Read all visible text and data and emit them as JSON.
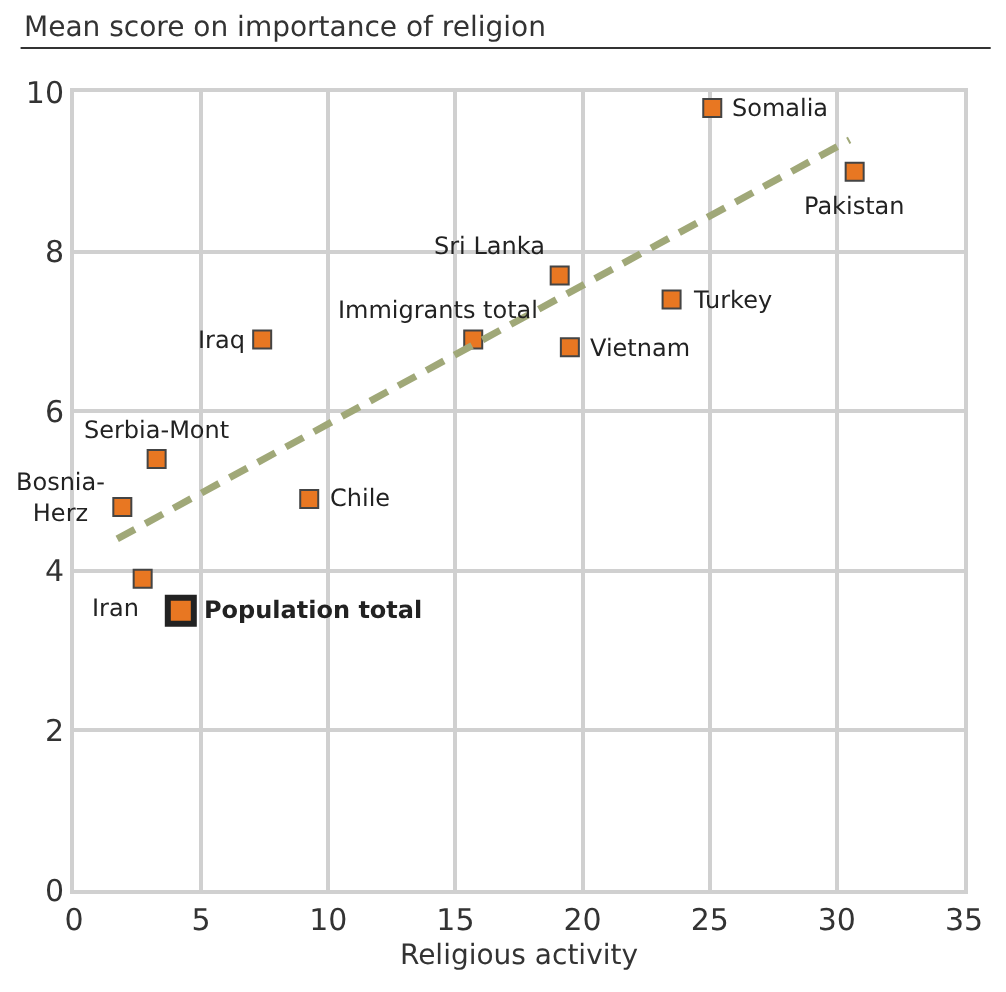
{
  "chart_data": {
    "type": "scatter",
    "ylabel": "Mean score on importance of religion",
    "xlabel": "Religious activity",
    "xlim": [
      0,
      35
    ],
    "xticks": [
      0,
      5,
      10,
      15,
      20,
      25,
      30,
      35
    ],
    "ylim": [
      0,
      10
    ],
    "yticks": [
      0,
      2,
      4,
      6,
      8,
      10
    ],
    "grid": true,
    "marker": "square",
    "series": [
      {
        "color": "#e87722",
        "x": [
          25.1,
          30.7,
          19.1,
          23.5,
          15.7,
          19.5,
          7.4,
          3.25,
          1.9,
          9.25,
          2.7
        ],
        "values": [
          9.8,
          9.0,
          7.7,
          7.4,
          6.9,
          6.8,
          6.9,
          5.4,
          4.8,
          4.9,
          3.9
        ]
      },
      {
        "color": "#e87722",
        "x": [
          4.2
        ],
        "values": [
          3.5
        ]
      },
      {
        "type": "line",
        "line_style": "dashed",
        "marker": "none",
        "color": "#a0a878",
        "x": [
          1.7,
          30.5
        ],
        "values": [
          4.4,
          9.4
        ]
      }
    ],
    "annotations": [
      {
        "text": "Somalia",
        "x": 25.1,
        "y": 9.8
      },
      {
        "text": "Pakistan",
        "x": 30.7,
        "y": 9.0
      },
      {
        "text": "Sri Lanka",
        "x": 19.1,
        "y": 7.7
      },
      {
        "text": "Turkey",
        "x": 23.5,
        "y": 7.4
      },
      {
        "text": "Immigrants total",
        "x": 15.7,
        "y": 6.9
      },
      {
        "text": "Vietnam",
        "x": 19.5,
        "y": 6.8
      },
      {
        "text": "Iraq",
        "x": 7.4,
        "y": 6.9
      },
      {
        "text": "Serbia-Mont",
        "x": 3.25,
        "y": 5.4
      },
      {
        "text": "Bosnia-\nHerz",
        "x": 1.9,
        "y": 4.8
      },
      {
        "text": "Chile",
        "x": 9.25,
        "y": 4.9
      },
      {
        "text": "Iran",
        "x": 2.7,
        "y": 3.9
      },
      {
        "text": "Population total",
        "x": 4.2,
        "y": 3.5
      }
    ]
  }
}
